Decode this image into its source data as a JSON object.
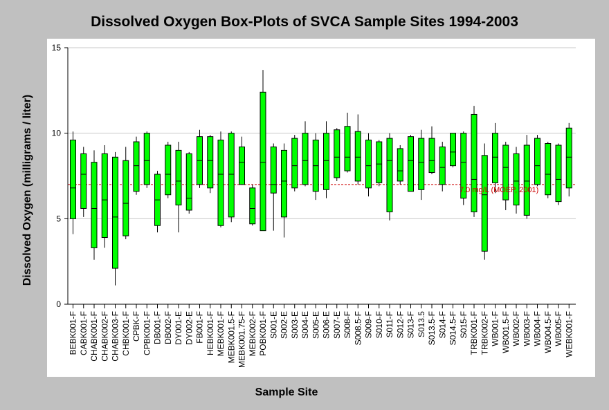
{
  "chart_data": {
    "type": "boxplot",
    "title": "Dissolved Oxygen Box-Plots of SVCA Sample Sites 1994-2003",
    "xlabel": "Sample Site",
    "ylabel": "Dissolved Oxygen  (milligrams / liter)",
    "ylim": [
      0,
      15
    ],
    "yticks": [
      "0",
      "5",
      "10",
      "15"
    ],
    "grid": true,
    "colors": {
      "box": "#00ff00",
      "reference": "#cc0000",
      "whisker": "#000000",
      "plot_background": "#ffffff",
      "outer_background": "#c0c0c0"
    },
    "reference_line": {
      "value": 7.0,
      "label": "7.0 mg/L (MOEP, 2001)"
    },
    "categories": [
      "BEBK001-F",
      "CABK001-F",
      "CHABK001-F",
      "CHABK002-F",
      "CHABK003-F",
      "CHBK001-F",
      "CPBK-F",
      "CPBK001-F",
      "DB001-F",
      "DB002-F",
      "DY001-E",
      "DY002-E",
      "FB001-F",
      "HEBK001-F",
      "MEBK001-F",
      "MEBK001.5-F",
      "MEBK001.75-F",
      "MEBK002-F",
      "POBK001-F",
      "S001-E",
      "S002-E",
      "S003-E",
      "S004-E",
      "S005-E",
      "S006-E",
      "S007-E",
      "S008-F",
      "S008.5-F",
      "S009-F",
      "S010-F",
      "S011-F",
      "S012-F",
      "S013-F",
      "S013.5",
      "S013.5-F",
      "S014-F",
      "S014.5-F",
      "S015-F",
      "TRBK001-F",
      "TRBK002-F",
      "WB001-F",
      "WB001.5-F",
      "WB002-F",
      "WB003-F",
      "WB004-F",
      "WB004.5-F",
      "WB005-F",
      "WEBK001-F"
    ],
    "boxes": [
      {
        "whisker_low": 4.1,
        "q1": 5.0,
        "median": 6.8,
        "q3": 9.6,
        "whisker_high": 10.1
      },
      {
        "whisker_low": 5.1,
        "q1": 5.6,
        "median": 7.6,
        "q3": 8.8,
        "whisker_high": 9.2
      },
      {
        "whisker_low": 2.6,
        "q1": 3.3,
        "median": 5.6,
        "q3": 8.3,
        "whisker_high": 9.0
      },
      {
        "whisker_low": 3.3,
        "q1": 3.9,
        "median": 6.1,
        "q3": 8.8,
        "whisker_high": 9.3
      },
      {
        "whisker_low": 1.1,
        "q1": 2.1,
        "median": 5.1,
        "q3": 8.6,
        "whisker_high": 8.9
      },
      {
        "whisker_low": 3.8,
        "q1": 4.0,
        "median": 5.9,
        "q3": 8.4,
        "whisker_high": 9.2
      },
      {
        "whisker_low": 6.4,
        "q1": 6.6,
        "median": 8.1,
        "q3": 9.5,
        "whisker_high": 9.8
      },
      {
        "whisker_low": 6.8,
        "q1": 7.0,
        "median": 8.4,
        "q3": 10.0,
        "whisker_high": 10.1
      },
      {
        "whisker_low": 4.2,
        "q1": 4.6,
        "median": 6.1,
        "q3": 7.6,
        "whisker_high": 7.8
      },
      {
        "whisker_low": 6.2,
        "q1": 6.4,
        "median": 7.6,
        "q3": 9.3,
        "whisker_high": 9.5
      },
      {
        "whisker_low": 4.2,
        "q1": 5.8,
        "median": 7.2,
        "q3": 9.0,
        "whisker_high": 9.5
      },
      {
        "whisker_low": 5.3,
        "q1": 5.5,
        "median": 6.2,
        "q3": 8.8,
        "whisker_high": 8.9
      },
      {
        "whisker_low": 6.8,
        "q1": 7.0,
        "median": 8.4,
        "q3": 9.8,
        "whisker_high": 10.2
      },
      {
        "whisker_low": 6.5,
        "q1": 6.8,
        "median": 8.4,
        "q3": 9.8,
        "whisker_high": 9.9
      },
      {
        "whisker_low": 4.5,
        "q1": 4.6,
        "median": 7.6,
        "q3": 9.6,
        "whisker_high": 10.1
      },
      {
        "whisker_low": 4.8,
        "q1": 5.1,
        "median": 7.6,
        "q3": 10.0,
        "whisker_high": 10.1
      },
      {
        "whisker_low": 7.0,
        "q1": 7.0,
        "median": 8.3,
        "q3": 9.2,
        "whisker_high": 9.8
      },
      {
        "whisker_low": 4.6,
        "q1": 4.7,
        "median": 5.6,
        "q3": 6.8,
        "whisker_high": 7.0
      },
      {
        "whisker_low": 4.3,
        "q1": 4.3,
        "median": 8.3,
        "q3": 12.4,
        "whisker_high": 13.7
      },
      {
        "whisker_low": 4.3,
        "q1": 6.5,
        "median": 7.0,
        "q3": 9.2,
        "whisker_high": 9.4
      },
      {
        "whisker_low": 3.9,
        "q1": 5.1,
        "median": 7.2,
        "q3": 9.0,
        "whisker_high": 9.4
      },
      {
        "whisker_low": 6.6,
        "q1": 6.8,
        "median": 8.1,
        "q3": 9.7,
        "whisker_high": 9.9
      },
      {
        "whisker_low": 6.9,
        "q1": 7.0,
        "median": 8.4,
        "q3": 10.0,
        "whisker_high": 10.7
      },
      {
        "whisker_low": 6.1,
        "q1": 6.6,
        "median": 8.1,
        "q3": 9.6,
        "whisker_high": 10.0
      },
      {
        "whisker_low": 6.2,
        "q1": 6.7,
        "median": 8.4,
        "q3": 10.0,
        "whisker_high": 10.7
      },
      {
        "whisker_low": 7.2,
        "q1": 7.4,
        "median": 8.6,
        "q3": 10.2,
        "whisker_high": 10.3
      },
      {
        "whisker_low": 7.7,
        "q1": 7.8,
        "median": 8.6,
        "q3": 10.4,
        "whisker_high": 11.2
      },
      {
        "whisker_low": 7.0,
        "q1": 7.2,
        "median": 8.6,
        "q3": 10.1,
        "whisker_high": 11.1
      },
      {
        "whisker_low": 6.3,
        "q1": 6.8,
        "median": 8.1,
        "q3": 9.6,
        "whisker_high": 10.0
      },
      {
        "whisker_low": 6.9,
        "q1": 7.1,
        "median": 8.2,
        "q3": 9.5,
        "whisker_high": 9.6
      },
      {
        "whisker_low": 4.9,
        "q1": 5.4,
        "median": 8.4,
        "q3": 9.7,
        "whisker_high": 10.0
      },
      {
        "whisker_low": 7.0,
        "q1": 7.2,
        "median": 7.8,
        "q3": 9.1,
        "whisker_high": 9.3
      },
      {
        "whisker_low": 6.6,
        "q1": 6.6,
        "median": 8.4,
        "q3": 9.8,
        "whisker_high": 9.9
      },
      {
        "whisker_low": 6.1,
        "q1": 6.7,
        "median": 8.3,
        "q3": 9.7,
        "whisker_high": 10.2
      },
      {
        "whisker_low": 7.6,
        "q1": 7.7,
        "median": 8.4,
        "q3": 9.7,
        "whisker_high": 10.4
      },
      {
        "whisker_low": 6.6,
        "q1": 7.0,
        "median": 8.0,
        "q3": 9.2,
        "whisker_high": 9.5
      },
      {
        "whisker_low": 8.0,
        "q1": 8.1,
        "median": 8.9,
        "q3": 10.0,
        "whisker_high": 10.0
      },
      {
        "whisker_low": 5.8,
        "q1": 6.2,
        "median": 8.3,
        "q3": 10.0,
        "whisker_high": 10.1
      },
      {
        "whisker_low": 5.1,
        "q1": 5.4,
        "median": 7.3,
        "q3": 11.1,
        "whisker_high": 11.6
      },
      {
        "whisker_low": 2.6,
        "q1": 3.1,
        "median": 6.4,
        "q3": 8.7,
        "whisker_high": 9.4
      },
      {
        "whisker_low": 6.5,
        "q1": 7.1,
        "median": 8.6,
        "q3": 10.0,
        "whisker_high": 10.6
      },
      {
        "whisker_low": 5.5,
        "q1": 6.1,
        "median": 8.0,
        "q3": 9.3,
        "whisker_high": 9.5
      },
      {
        "whisker_low": 5.3,
        "q1": 5.8,
        "median": 7.2,
        "q3": 8.8,
        "whisker_high": 9.2
      },
      {
        "whisker_low": 5.0,
        "q1": 5.2,
        "median": 7.2,
        "q3": 9.3,
        "whisker_high": 9.9
      },
      {
        "whisker_low": 6.9,
        "q1": 7.0,
        "median": 8.1,
        "q3": 9.7,
        "whisker_high": 9.9
      },
      {
        "whisker_low": 6.2,
        "q1": 6.4,
        "median": 7.6,
        "q3": 9.4,
        "whisker_high": 9.5
      },
      {
        "whisker_low": 5.8,
        "q1": 6.0,
        "median": 7.3,
        "q3": 9.3,
        "whisker_high": 9.4
      },
      {
        "whisker_low": 6.3,
        "q1": 6.8,
        "median": 8.6,
        "q3": 10.3,
        "whisker_high": 10.6
      }
    ]
  }
}
